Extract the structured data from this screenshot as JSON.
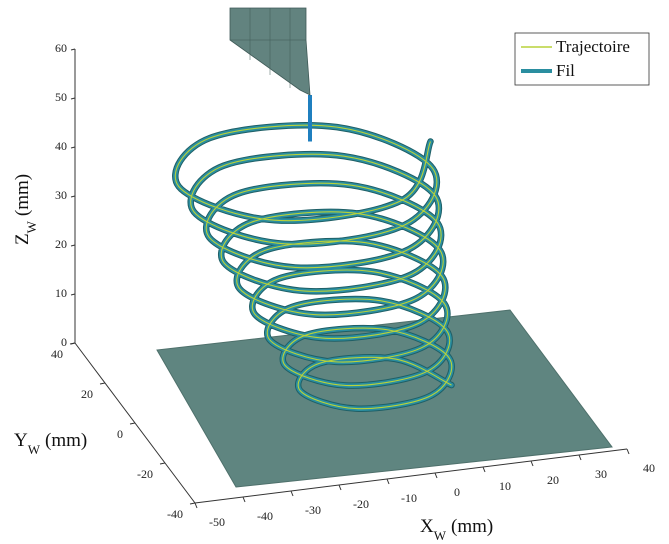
{
  "chart_data": {
    "type": "line3d",
    "x": [
      15,
      7.4,
      -8.2,
      -16.3,
      -8.8,
      6.9,
      15,
      6.7,
      -10.2,
      -19,
      -10.8,
      6.3,
      15,
      6.1,
      -12.2,
      -21.7,
      -12.8,
      5.6,
      15,
      5.4,
      -14.2,
      -24.3,
      -14.8,
      4.9,
      15,
      4.7,
      -16.2,
      -27,
      -16.8,
      4.3,
      15,
      4.1,
      -18.2,
      -29.7,
      -18.8,
      3.6,
      15,
      3.4,
      -20.2,
      -32.3,
      -20.8,
      2.9,
      15,
      2.7,
      -22.2,
      -35,
      -22.8,
      2.3,
      15,
      2.1,
      -24.2,
      -37.7,
      -24.8,
      1.6,
      15
    ],
    "y": [
      -3,
      10.4,
      10.9,
      -2.2,
      -15.7,
      -15.7,
      -1.4,
      13.2,
      13.6,
      -0.7,
      -15.3,
      -15.3,
      0.1,
      15.9,
      16.3,
      0.9,
      -14.9,
      -14.9,
      1.7,
      18.6,
      19,
      2.4,
      -14.5,
      -14.5,
      3.2,
      21.3,
      21.7,
      4,
      -14.1,
      -14.1,
      4.8,
      24,
      24.4,
      5.6,
      -13.7,
      -13.7,
      6.3,
      26.7,
      27.2,
      7.1,
      -13.3,
      -13.3,
      7.9,
      29.4,
      29.9,
      8.7,
      -12.9,
      -12.8,
      9.4,
      32.1,
      32.6,
      10.2,
      -12.5,
      -12.5,
      11
    ],
    "z": [
      1,
      1.8,
      2.6,
      3.4,
      4.3,
      5.1,
      5.9,
      6.7,
      7.5,
      8.3,
      9.1,
      10,
      10.8,
      11.6,
      12.4,
      13.2,
      14,
      14.9,
      15.7,
      16.5,
      17.3,
      18.1,
      18.9,
      19.7,
      20.6,
      21.4,
      22.2,
      23,
      23.8,
      24.6,
      25.4,
      26.3,
      27.1,
      27.9,
      28.7,
      29.5,
      30.3,
      31.1,
      32,
      32.8,
      33.6,
      34.4,
      35.2,
      36,
      36.9,
      37.7,
      38.5,
      39.3,
      40.1,
      40.9,
      41.7,
      42.6,
      43.4,
      44.2,
      45
    ],
    "series": [
      {
        "name": "Trajectoire",
        "color": "#b9d23a"
      },
      {
        "name": "Fil",
        "color": "#2a8ea0"
      }
    ],
    "xlabel": {
      "symbol": "X",
      "sub": "W",
      "unit": "(mm)"
    },
    "ylabel": {
      "symbol": "Y",
      "sub": "W",
      "unit": "(mm)"
    },
    "zlabel": {
      "symbol": "Z",
      "sub": "W",
      "unit": "(mm)"
    },
    "xlim": [
      -50,
      40
    ],
    "ylim": [
      -40,
      40
    ],
    "zlim": [
      0,
      60
    ],
    "xticks": [
      -50,
      -40,
      -30,
      -20,
      -10,
      0,
      10,
      20,
      30,
      40
    ],
    "yticks": [
      -40,
      -20,
      0,
      20,
      40
    ],
    "zticks": [
      0,
      10,
      20,
      30,
      40,
      50,
      60
    ],
    "legend": "upper right"
  }
}
